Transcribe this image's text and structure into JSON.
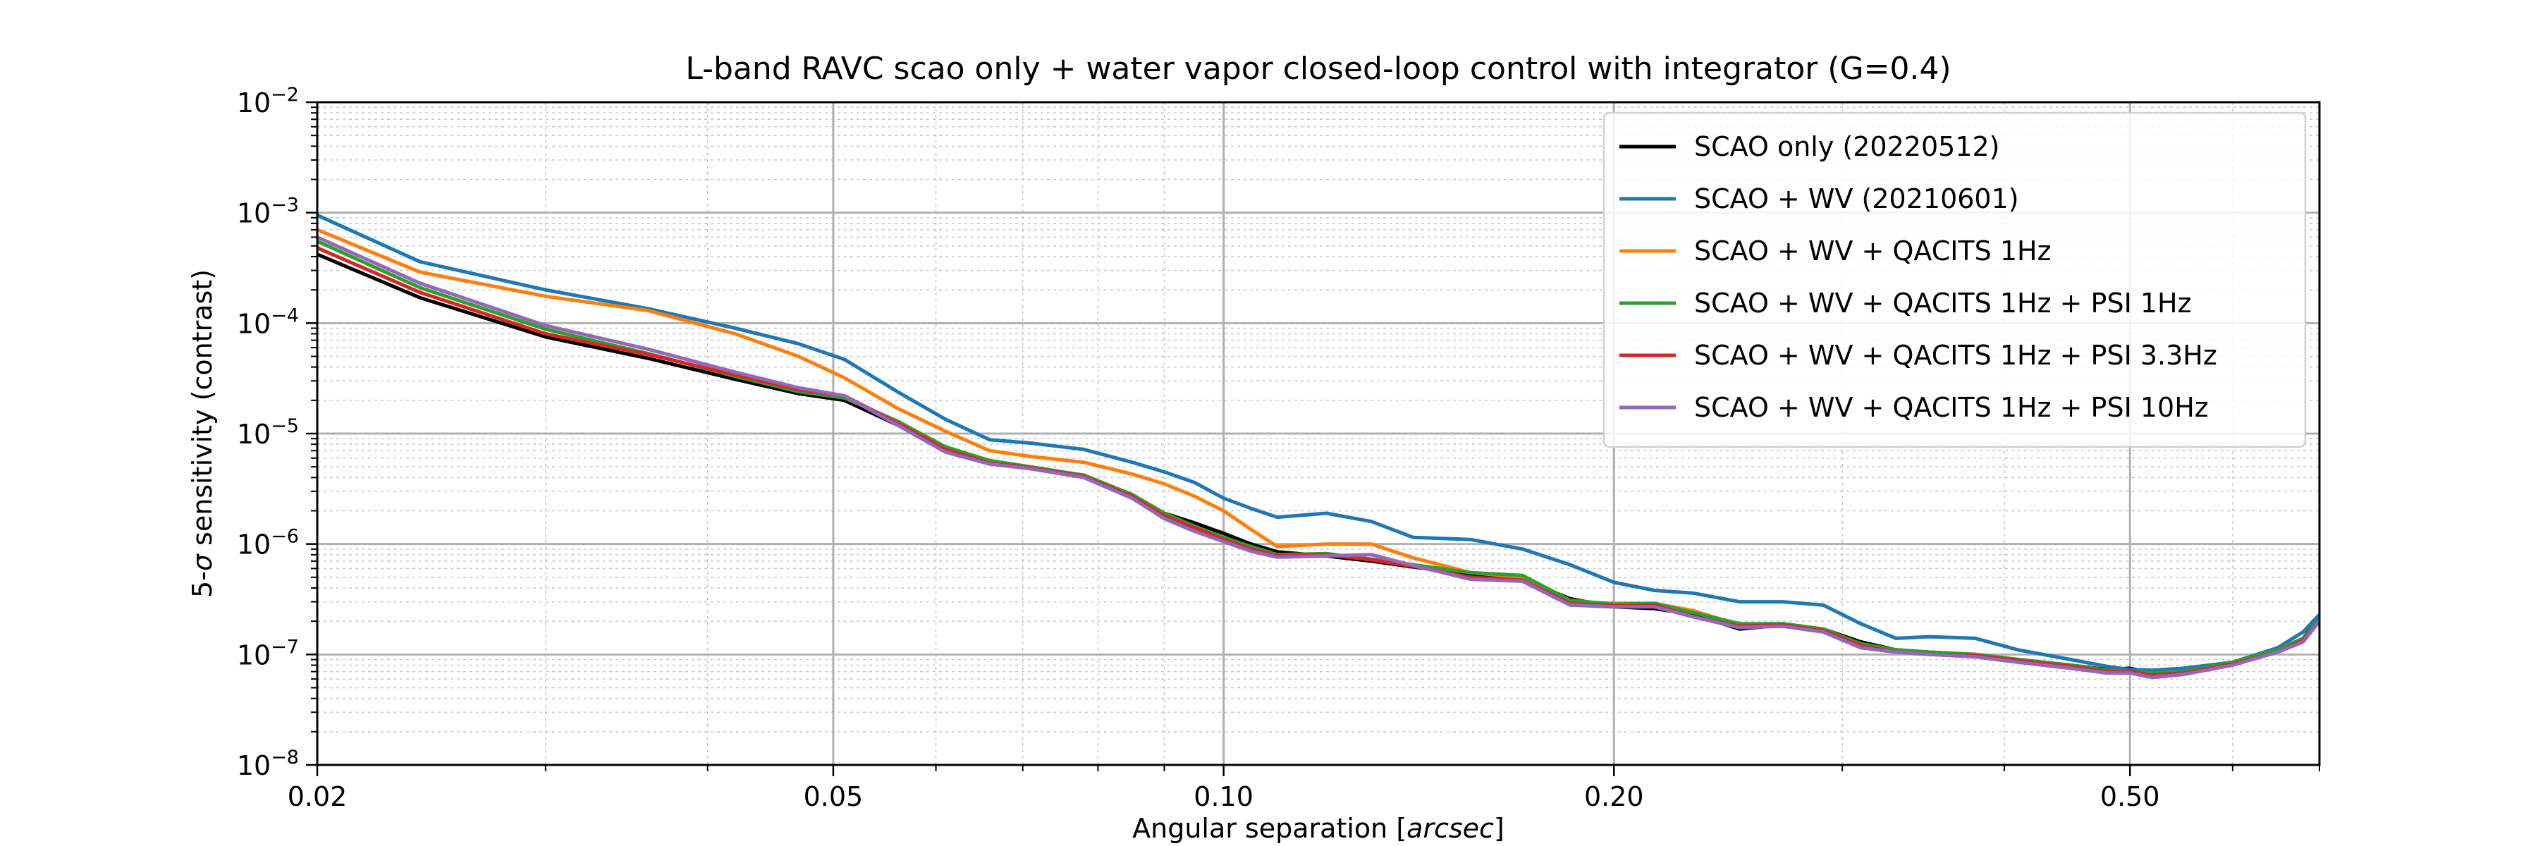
{
  "chart_data": {
    "type": "line",
    "title": "L-band RAVC scao only + water vapor closed-loop control with integrator (G=0.4)",
    "xlabel_prefix": "Angular separation [",
    "xlabel_italic": "arcsec",
    "xlabel_suffix": "]",
    "ylabel_prefix": "5-",
    "ylabel_sigma": "σ",
    "ylabel_suffix": " sensitivity (contrast)",
    "xscale": "log",
    "yscale": "log",
    "xlim": [
      0.02,
      0.7
    ],
    "ylim": [
      1e-08,
      0.01
    ],
    "x_ticks": [
      {
        "value": 0.02,
        "label": "0.02"
      },
      {
        "value": 0.05,
        "label": "0.05"
      },
      {
        "value": 0.1,
        "label": "0.10"
      },
      {
        "value": 0.2,
        "label": "0.20"
      },
      {
        "value": 0.5,
        "label": "0.50"
      }
    ],
    "y_ticks": [
      {
        "value": 1e-08,
        "base": "10",
        "exp": "−8"
      },
      {
        "value": 1e-07,
        "base": "10",
        "exp": "−7"
      },
      {
        "value": 1e-06,
        "base": "10",
        "exp": "−6"
      },
      {
        "value": 1e-05,
        "base": "10",
        "exp": "−5"
      },
      {
        "value": 0.0001,
        "base": "10",
        "exp": "−4"
      },
      {
        "value": 0.001,
        "base": "10",
        "exp": "−3"
      },
      {
        "value": 0.01,
        "base": "10",
        "exp": "−2"
      }
    ],
    "grid": true,
    "legend_position": "top-right",
    "x": [
      0.02,
      0.024,
      0.03,
      0.036,
      0.042,
      0.047,
      0.051,
      0.056,
      0.061,
      0.066,
      0.071,
      0.078,
      0.085,
      0.09,
      0.095,
      0.1,
      0.105,
      0.11,
      0.12,
      0.13,
      0.14,
      0.155,
      0.17,
      0.185,
      0.2,
      0.215,
      0.23,
      0.25,
      0.27,
      0.29,
      0.31,
      0.33,
      0.35,
      0.38,
      0.41,
      0.45,
      0.48,
      0.5,
      0.52,
      0.55,
      0.6,
      0.65,
      0.68,
      0.7
    ],
    "series": [
      {
        "name": "SCAO only (20220512)",
        "color": "#000000",
        "values": [
          0.00042,
          0.00017,
          7.5e-05,
          4.8e-05,
          3.1e-05,
          2.3e-05,
          2e-05,
          1.2e-05,
          7e-06,
          5.5e-06,
          4.8e-06,
          4.2e-06,
          2.8e-06,
          1.9e-06,
          1.55e-06,
          1.25e-06,
          1e-06,
          8.5e-07,
          7.8e-07,
          7e-07,
          6.2e-07,
          5.3e-07,
          4.8e-07,
          3.2e-07,
          2.7e-07,
          2.6e-07,
          2.3e-07,
          1.7e-07,
          1.85e-07,
          1.7e-07,
          1.3e-07,
          1.1e-07,
          1.05e-07,
          1e-07,
          9e-08,
          8e-08,
          7.3e-08,
          7.5e-08,
          6.8e-08,
          7e-08,
          8.5e-08,
          1.1e-07,
          1.4e-07,
          2.2e-07
        ]
      },
      {
        "name": "SCAO + WV (20210601)",
        "color": "#1f77b4",
        "values": [
          0.00095,
          0.00036,
          0.0002,
          0.000135,
          9e-05,
          6.5e-05,
          4.7e-05,
          2.4e-05,
          1.35e-05,
          8.8e-06,
          8.2e-06,
          7.2e-06,
          5.5e-06,
          4.5e-06,
          3.6e-06,
          2.6e-06,
          2.1e-06,
          1.75e-06,
          1.9e-06,
          1.6e-06,
          1.15e-06,
          1.1e-06,
          9e-07,
          6.5e-07,
          4.5e-07,
          3.8e-07,
          3.6e-07,
          3e-07,
          3e-07,
          2.8e-07,
          1.9e-07,
          1.4e-07,
          1.45e-07,
          1.4e-07,
          1.1e-07,
          9e-08,
          7.8e-08,
          7.3e-08,
          7.2e-08,
          7.5e-08,
          8.5e-08,
          1.15e-07,
          1.6e-07,
          2.3e-07
        ]
      },
      {
        "name": "SCAO + WV + QACITS 1Hz",
        "color": "#ff7f0e",
        "values": [
          0.0007,
          0.00029,
          0.000175,
          0.00013,
          8e-05,
          5e-05,
          3.2e-05,
          1.7e-05,
          1.05e-05,
          7e-06,
          6.2e-06,
          5.5e-06,
          4.3e-06,
          3.5e-06,
          2.7e-06,
          2e-06,
          1.35e-06,
          9.5e-07,
          1e-06,
          1e-06,
          7.5e-07,
          5.5e-07,
          5e-07,
          3e-07,
          2.9e-07,
          2.9e-07,
          2.5e-07,
          1.85e-07,
          1.9e-07,
          1.7e-07,
          1.25e-07,
          1.1e-07,
          1.05e-07,
          1e-07,
          9e-08,
          8e-08,
          7.2e-08,
          7e-08,
          6.8e-08,
          7e-08,
          8.5e-08,
          1.1e-07,
          1.4e-07,
          2.1e-07
        ]
      },
      {
        "name": "SCAO + WV + QACITS 1Hz + PSI 1Hz",
        "color": "#2ca02c",
        "values": [
          0.00055,
          0.00021,
          8.8e-05,
          5.3e-05,
          3.3e-05,
          2.4e-05,
          2.1e-05,
          1.3e-05,
          7.6e-06,
          5.7e-06,
          5e-06,
          4.2e-06,
          2.8e-06,
          1.9e-06,
          1.45e-06,
          1.15e-06,
          9.5e-07,
          8e-07,
          8.2e-07,
          7.3e-07,
          6.5e-07,
          5.5e-07,
          5.2e-07,
          3.1e-07,
          2.85e-07,
          2.9e-07,
          2.4e-07,
          1.9e-07,
          1.9e-07,
          1.7e-07,
          1.25e-07,
          1.1e-07,
          1.05e-07,
          1e-07,
          9e-08,
          8e-08,
          7.2e-08,
          7e-08,
          6.8e-08,
          7e-08,
          8.5e-08,
          1.1e-07,
          1.4e-07,
          2.1e-07
        ]
      },
      {
        "name": "SCAO + WV + QACITS 1Hz + PSI 3.3Hz",
        "color": "#d62728",
        "values": [
          0.00048,
          0.00019,
          8e-05,
          5.2e-05,
          3.4e-05,
          2.5e-05,
          2.2e-05,
          1.25e-05,
          7.2e-06,
          5.4e-06,
          4.9e-06,
          4.1e-06,
          2.7e-06,
          1.8e-06,
          1.4e-06,
          1.1e-06,
          9e-07,
          7.8e-07,
          8e-07,
          7.2e-07,
          6.3e-07,
          5e-07,
          4.7e-07,
          2.9e-07,
          2.75e-07,
          2.8e-07,
          2.2e-07,
          1.8e-07,
          1.85e-07,
          1.65e-07,
          1.2e-07,
          1.05e-07,
          1e-07,
          9.8e-08,
          8.8e-08,
          7.8e-08,
          7e-08,
          7e-08,
          6.5e-08,
          6.8e-08,
          8.2e-08,
          1.05e-07,
          1.35e-07,
          2e-07
        ]
      },
      {
        "name": "SCAO + WV + QACITS 1Hz + PSI 10Hz",
        "color": "#9467bd",
        "values": [
          0.0006,
          0.00023,
          9.5e-05,
          5.8e-05,
          3.6e-05,
          2.6e-05,
          2.2e-05,
          1.2e-05,
          6.8e-06,
          5.3e-06,
          4.8e-06,
          4e-06,
          2.6e-06,
          1.7e-06,
          1.3e-06,
          1.05e-06,
          8.6e-07,
          7.6e-07,
          7.8e-07,
          8e-07,
          6.4e-07,
          4.8e-07,
          4.6e-07,
          2.8e-07,
          2.7e-07,
          2.7e-07,
          2.2e-07,
          1.75e-07,
          1.8e-07,
          1.6e-07,
          1.15e-07,
          1.05e-07,
          1e-07,
          9.5e-08,
          8.5e-08,
          7.5e-08,
          6.8e-08,
          6.8e-08,
          6.2e-08,
          6.6e-08,
          8e-08,
          1.05e-07,
          1.3e-07,
          2e-07
        ]
      }
    ]
  }
}
